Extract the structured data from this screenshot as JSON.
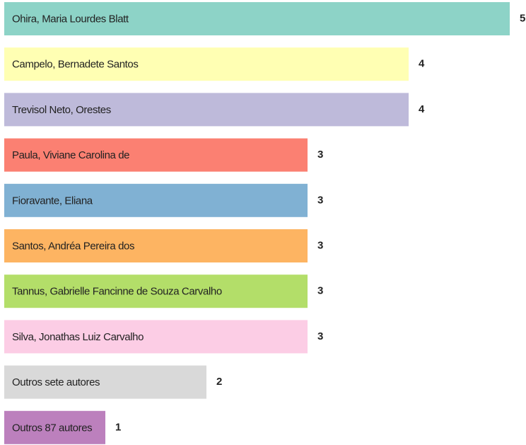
{
  "chart_data": {
    "type": "bar",
    "orientation": "horizontal",
    "categories": [
      "Ohira, Maria Lourdes Blatt",
      "Campelo, Bernadete Santos",
      "Trevisol Neto, Orestes",
      "Paula, Viviane Carolina de",
      "Fioravante, Eliana",
      "Santos, Andréa Pereira dos",
      "Tannus, Gabrielle Fancinne de Souza Carvalho",
      "Silva, Jonathas Luiz Carvalho",
      "Outros sete autores",
      "Outros 87 autores"
    ],
    "values": [
      5,
      4,
      4,
      3,
      3,
      3,
      3,
      3,
      2,
      1
    ],
    "colors": [
      "#8dd3c7",
      "#ffffb3",
      "#bebada",
      "#fb8072",
      "#80b1d3",
      "#fdb462",
      "#b3de69",
      "#fccde5",
      "#d9d9d9",
      "#bc80bd"
    ],
    "xlim": [
      0,
      5
    ]
  }
}
